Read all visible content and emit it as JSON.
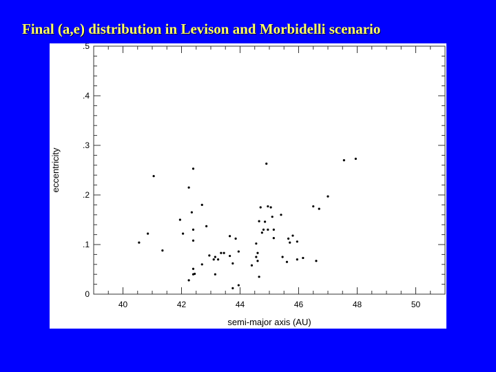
{
  "slide": {
    "title": "Final (a,e) distribution in Levison and Morbidelli scenario"
  },
  "chart_data": {
    "type": "scatter",
    "title": "",
    "xlabel": "semi-major axis (AU)",
    "ylabel": "eccentricity",
    "xlim": [
      39,
      51
    ],
    "ylim": [
      0,
      0.5
    ],
    "xticks": [
      40,
      42,
      44,
      46,
      48,
      50
    ],
    "xtick_labels": [
      "40",
      "42",
      "44",
      "46",
      "48",
      "50"
    ],
    "yticks": [
      0,
      0.1,
      0.2,
      0.3,
      0.4,
      0.5
    ],
    "ytick_labels": [
      "0",
      ".1",
      ".2",
      ".3",
      ".4",
      ".5"
    ],
    "grid": false,
    "series": [
      {
        "points": [
          [
            40.55,
            0.104
          ],
          [
            40.85,
            0.122
          ],
          [
            41.05,
            0.238
          ],
          [
            41.35,
            0.088
          ],
          [
            41.95,
            0.15
          ],
          [
            42.05,
            0.122
          ],
          [
            42.25,
            0.215
          ],
          [
            42.25,
            0.028
          ],
          [
            42.35,
            0.165
          ],
          [
            42.4,
            0.253
          ],
          [
            42.4,
            0.13
          ],
          [
            42.4,
            0.108
          ],
          [
            42.4,
            0.051
          ],
          [
            42.4,
            0.04
          ],
          [
            42.45,
            0.041
          ],
          [
            42.7,
            0.18
          ],
          [
            42.7,
            0.06
          ],
          [
            42.85,
            0.137
          ],
          [
            42.95,
            0.078
          ],
          [
            43.1,
            0.07
          ],
          [
            43.15,
            0.075
          ],
          [
            43.15,
            0.04
          ],
          [
            43.25,
            0.07
          ],
          [
            43.35,
            0.083
          ],
          [
            43.45,
            0.083
          ],
          [
            43.65,
            0.117
          ],
          [
            43.65,
            0.077
          ],
          [
            43.75,
            0.062
          ],
          [
            43.75,
            0.012
          ],
          [
            43.85,
            0.112
          ],
          [
            43.95,
            0.086
          ],
          [
            43.95,
            0.018
          ],
          [
            44.4,
            0.058
          ],
          [
            44.55,
            0.102
          ],
          [
            44.55,
            0.075
          ],
          [
            44.6,
            0.067
          ],
          [
            44.6,
            0.083
          ],
          [
            44.65,
            0.147
          ],
          [
            44.65,
            0.035
          ],
          [
            44.7,
            0.175
          ],
          [
            44.75,
            0.124
          ],
          [
            44.8,
            0.13
          ],
          [
            44.85,
            0.146
          ],
          [
            44.9,
            0.263
          ],
          [
            44.95,
            0.13
          ],
          [
            44.95,
            0.177
          ],
          [
            45.05,
            0.175
          ],
          [
            45.1,
            0.156
          ],
          [
            45.15,
            0.13
          ],
          [
            45.15,
            0.113
          ],
          [
            45.4,
            0.16
          ],
          [
            45.45,
            0.075
          ],
          [
            45.6,
            0.065
          ],
          [
            45.65,
            0.112
          ],
          [
            45.7,
            0.104
          ],
          [
            45.8,
            0.118
          ],
          [
            45.95,
            0.106
          ],
          [
            45.95,
            0.07
          ],
          [
            46.15,
            0.073
          ],
          [
            46.5,
            0.177
          ],
          [
            46.6,
            0.067
          ],
          [
            46.7,
            0.172
          ],
          [
            47.0,
            0.197
          ],
          [
            47.55,
            0.27
          ],
          [
            47.95,
            0.273
          ]
        ]
      }
    ]
  }
}
